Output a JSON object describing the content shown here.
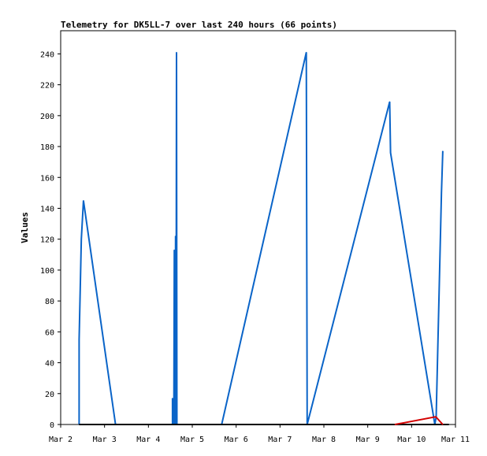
{
  "chart_data": {
    "type": "line",
    "title": "Telemetry for DK5LL-7 over last 240 hours (66 points)",
    "xlabel": "",
    "ylabel": "Values",
    "xlim": [
      2.0,
      11.0
    ],
    "ylim": [
      0,
      255
    ],
    "x_ticks": [
      {
        "value": 2,
        "label": "Mar 2"
      },
      {
        "value": 3,
        "label": "Mar 3"
      },
      {
        "value": 4,
        "label": "Mar 4"
      },
      {
        "value": 5,
        "label": "Mar 5"
      },
      {
        "value": 6,
        "label": "Mar 6"
      },
      {
        "value": 7,
        "label": "Mar 7"
      },
      {
        "value": 8,
        "label": "Mar 8"
      },
      {
        "value": 9,
        "label": "Mar 9"
      },
      {
        "value": 10,
        "label": "Mar 10"
      },
      {
        "value": 11,
        "label": "Mar 11"
      }
    ],
    "y_ticks": [
      0,
      20,
      40,
      60,
      80,
      100,
      120,
      140,
      160,
      180,
      200,
      220,
      240
    ],
    "grid": false,
    "series": [
      {
        "color": "#0a64c8",
        "points": [
          [
            2.42,
            0
          ],
          [
            2.42,
            55
          ],
          [
            2.47,
            120
          ],
          [
            2.52,
            145
          ],
          [
            3.25,
            0
          ],
          [
            4.55,
            0
          ],
          [
            4.55,
            17
          ],
          [
            4.58,
            0
          ],
          [
            4.59,
            113
          ],
          [
            4.61,
            0
          ],
          [
            4.62,
            122
          ],
          [
            4.63,
            0
          ],
          [
            4.64,
            241
          ],
          [
            4.65,
            0
          ],
          [
            5.67,
            0
          ],
          [
            7.6,
            241
          ],
          [
            7.62,
            0
          ],
          [
            9.5,
            209
          ],
          [
            9.52,
            176
          ],
          [
            10.53,
            0
          ],
          [
            10.56,
            5
          ],
          [
            10.68,
            150
          ],
          [
            10.71,
            177
          ]
        ]
      },
      {
        "color": "#000000",
        "points": [
          [
            2.42,
            0
          ],
          [
            10.85,
            0
          ]
        ]
      },
      {
        "color": "#d40000",
        "points": [
          [
            9.62,
            0
          ],
          [
            10.55,
            5
          ],
          [
            10.71,
            0
          ]
        ]
      }
    ]
  }
}
